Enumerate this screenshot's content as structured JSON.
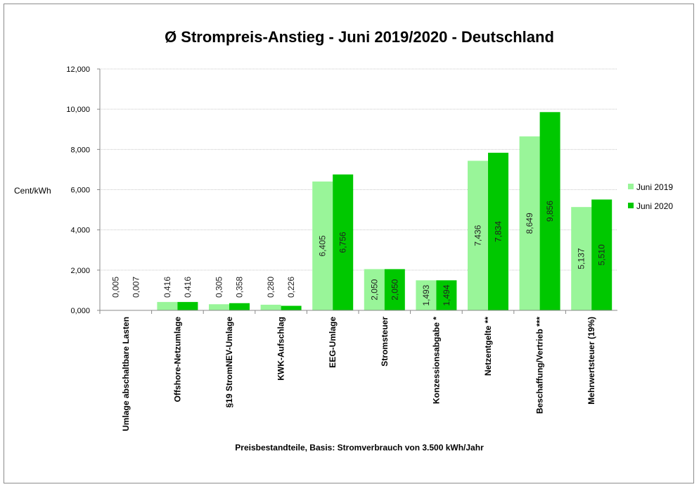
{
  "chart_data": {
    "type": "bar",
    "title": "Ø Strompreis-Anstieg - Juni 2019/2020 - Deutschland",
    "xlabel": "Preisbestandteile, Basis: Stromverbrauch von 3.500 kWh/Jahr",
    "ylabel": "Cent/kWh",
    "ylim": [
      0,
      12
    ],
    "yticks": [
      "0,000",
      "2,000",
      "4,000",
      "6,000",
      "8,000",
      "10,000",
      "12,000"
    ],
    "grid": true,
    "legend_position": "right",
    "categories": [
      "Umlage abschaltbare Lasten",
      "Offshore-Netzumlage",
      "§19 StromNEV-Umlage",
      "KWK-Aufschlag",
      "EEG-Umlage",
      "Stromsteuer",
      "Konzessionsabgabe *",
      "Netzentgelte **",
      "Beschaffung/Vertrieb ***",
      "Mehrwertsteuer (19%)"
    ],
    "series": [
      {
        "name": "Juni 2019",
        "color": "#99f599",
        "values": [
          0.005,
          0.416,
          0.305,
          0.28,
          6.405,
          2.05,
          1.493,
          7.436,
          8.649,
          5.137
        ],
        "labels": [
          "0,005",
          "0,416",
          "0,305",
          "0,280",
          "6,405",
          "2,050",
          "1,493",
          "7,436",
          "8,649",
          "5,137"
        ]
      },
      {
        "name": "Juni 2020",
        "color": "#00c800",
        "values": [
          0.007,
          0.416,
          0.358,
          0.226,
          6.756,
          2.05,
          1.494,
          7.834,
          9.856,
          5.51
        ],
        "labels": [
          "0,007",
          "0,416",
          "0,358",
          "0,226",
          "6,756",
          "2,050",
          "1,494",
          "7,834",
          "9,856",
          "5,510"
        ]
      }
    ]
  }
}
